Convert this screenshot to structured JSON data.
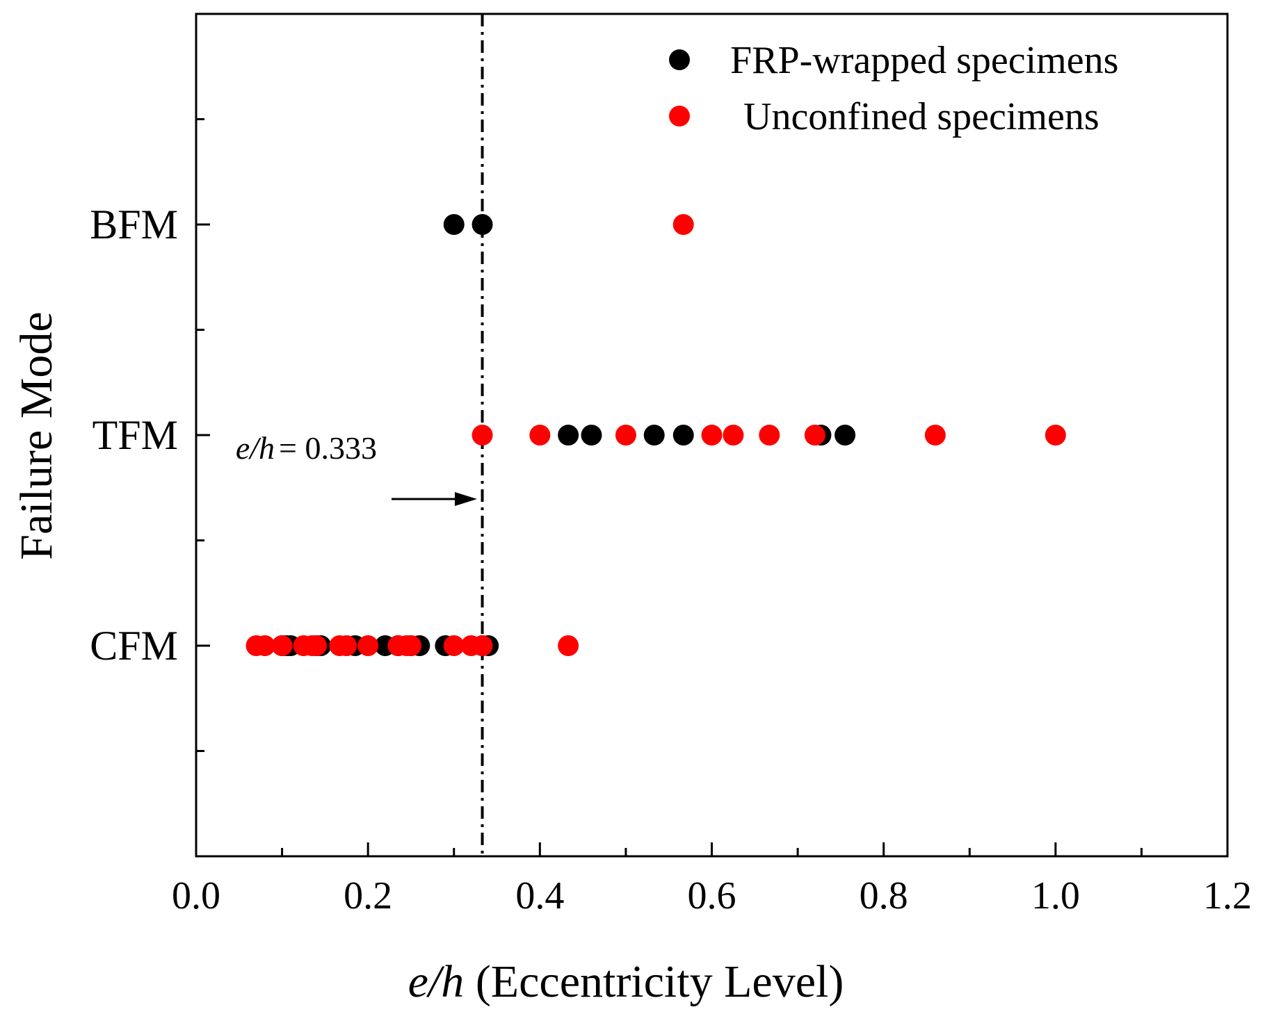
{
  "chart_data": {
    "type": "scatter",
    "xlabel_var": "e/h",
    "xlabel_desc": " (Eccentricity Level)",
    "ylabel": "Failure Mode",
    "xlim": [
      0.0,
      1.2
    ],
    "x_major_ticks": [
      0.0,
      0.2,
      0.4,
      0.6,
      0.8,
      1.0,
      1.2
    ],
    "x_tick_labels": [
      "0.0",
      "0.2",
      "0.4",
      "0.6",
      "0.8",
      "1.0",
      "1.2"
    ],
    "x_minor_step": 0.1,
    "categories": [
      "CFM",
      "TFM",
      "BFM"
    ],
    "category_positions": [
      1,
      2,
      3
    ],
    "ylim": [
      0.0,
      4.0
    ],
    "y_minor_positions": [
      0.5,
      1.5,
      2.5,
      3.5
    ],
    "legend_position": "top-right",
    "series": [
      {
        "name": "FRP-wrapped specimens",
        "color": "#000000",
        "points": [
          {
            "x": 0.1,
            "y": "CFM"
          },
          {
            "x": 0.105,
            "y": "CFM"
          },
          {
            "x": 0.11,
            "y": "CFM"
          },
          {
            "x": 0.14,
            "y": "CFM"
          },
          {
            "x": 0.145,
            "y": "CFM"
          },
          {
            "x": 0.185,
            "y": "CFM"
          },
          {
            "x": 0.22,
            "y": "CFM"
          },
          {
            "x": 0.235,
            "y": "CFM"
          },
          {
            "x": 0.25,
            "y": "CFM"
          },
          {
            "x": 0.26,
            "y": "CFM"
          },
          {
            "x": 0.29,
            "y": "CFM"
          },
          {
            "x": 0.333,
            "y": "CFM"
          },
          {
            "x": 0.34,
            "y": "CFM"
          },
          {
            "x": 0.433,
            "y": "TFM"
          },
          {
            "x": 0.46,
            "y": "TFM"
          },
          {
            "x": 0.533,
            "y": "TFM"
          },
          {
            "x": 0.567,
            "y": "TFM"
          },
          {
            "x": 0.727,
            "y": "TFM"
          },
          {
            "x": 0.755,
            "y": "TFM"
          },
          {
            "x": 0.3,
            "y": "BFM"
          },
          {
            "x": 0.333,
            "y": "BFM"
          }
        ]
      },
      {
        "name": "Unconfined specimens",
        "color": "#ff0000",
        "points": [
          {
            "x": 0.07,
            "y": "CFM"
          },
          {
            "x": 0.08,
            "y": "CFM"
          },
          {
            "x": 0.1,
            "y": "CFM"
          },
          {
            "x": 0.125,
            "y": "CFM"
          },
          {
            "x": 0.135,
            "y": "CFM"
          },
          {
            "x": 0.14,
            "y": "CFM"
          },
          {
            "x": 0.167,
            "y": "CFM"
          },
          {
            "x": 0.175,
            "y": "CFM"
          },
          {
            "x": 0.2,
            "y": "CFM"
          },
          {
            "x": 0.235,
            "y": "CFM"
          },
          {
            "x": 0.245,
            "y": "CFM"
          },
          {
            "x": 0.25,
            "y": "CFM"
          },
          {
            "x": 0.3,
            "y": "CFM"
          },
          {
            "x": 0.32,
            "y": "CFM"
          },
          {
            "x": 0.333,
            "y": "CFM"
          },
          {
            "x": 0.433,
            "y": "CFM"
          },
          {
            "x": 0.333,
            "y": "TFM"
          },
          {
            "x": 0.4,
            "y": "TFM"
          },
          {
            "x": 0.5,
            "y": "TFM"
          },
          {
            "x": 0.6,
            "y": "TFM"
          },
          {
            "x": 0.625,
            "y": "TFM"
          },
          {
            "x": 0.667,
            "y": "TFM"
          },
          {
            "x": 0.72,
            "y": "TFM"
          },
          {
            "x": 0.86,
            "y": "TFM"
          },
          {
            "x": 1.0,
            "y": "TFM"
          },
          {
            "x": 0.567,
            "y": "BFM"
          }
        ]
      }
    ],
    "reference_line": {
      "x": 0.333,
      "style": "dash-dot",
      "annotation_var": "e/h",
      "annotation_value": "= 0.333"
    }
  }
}
